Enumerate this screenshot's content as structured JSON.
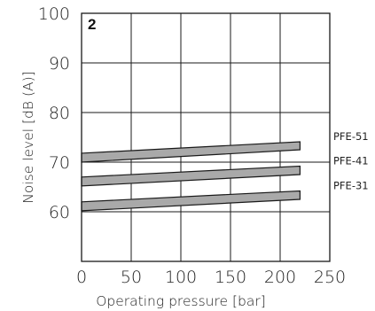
{
  "chart_data": {
    "type": "area",
    "badge": "2",
    "xlabel": "Operating pressure [bar]",
    "ylabel": "Noise level [dB (A)]",
    "xlim": [
      0,
      250
    ],
    "ylim": [
      50,
      100
    ],
    "xticks": [
      0,
      50,
      100,
      150,
      200,
      250
    ],
    "yticks": [
      60,
      70,
      80,
      90,
      100
    ],
    "grid": true,
    "series": [
      {
        "name": "PFE-51",
        "x": [
          0,
          220
        ],
        "lower": [
          70,
          72.5
        ],
        "upper": [
          71.8,
          74.1
        ]
      },
      {
        "name": "PFE-41",
        "x": [
          0,
          220
        ],
        "lower": [
          65.2,
          67.5
        ],
        "upper": [
          67,
          69.2
        ]
      },
      {
        "name": "PFE-31",
        "x": [
          0,
          220
        ],
        "lower": [
          60.2,
          62.5
        ],
        "upper": [
          62,
          64.2
        ]
      }
    ],
    "colors": {
      "band_fill": "#a9a9a9",
      "line": "#1a1a1a"
    }
  }
}
